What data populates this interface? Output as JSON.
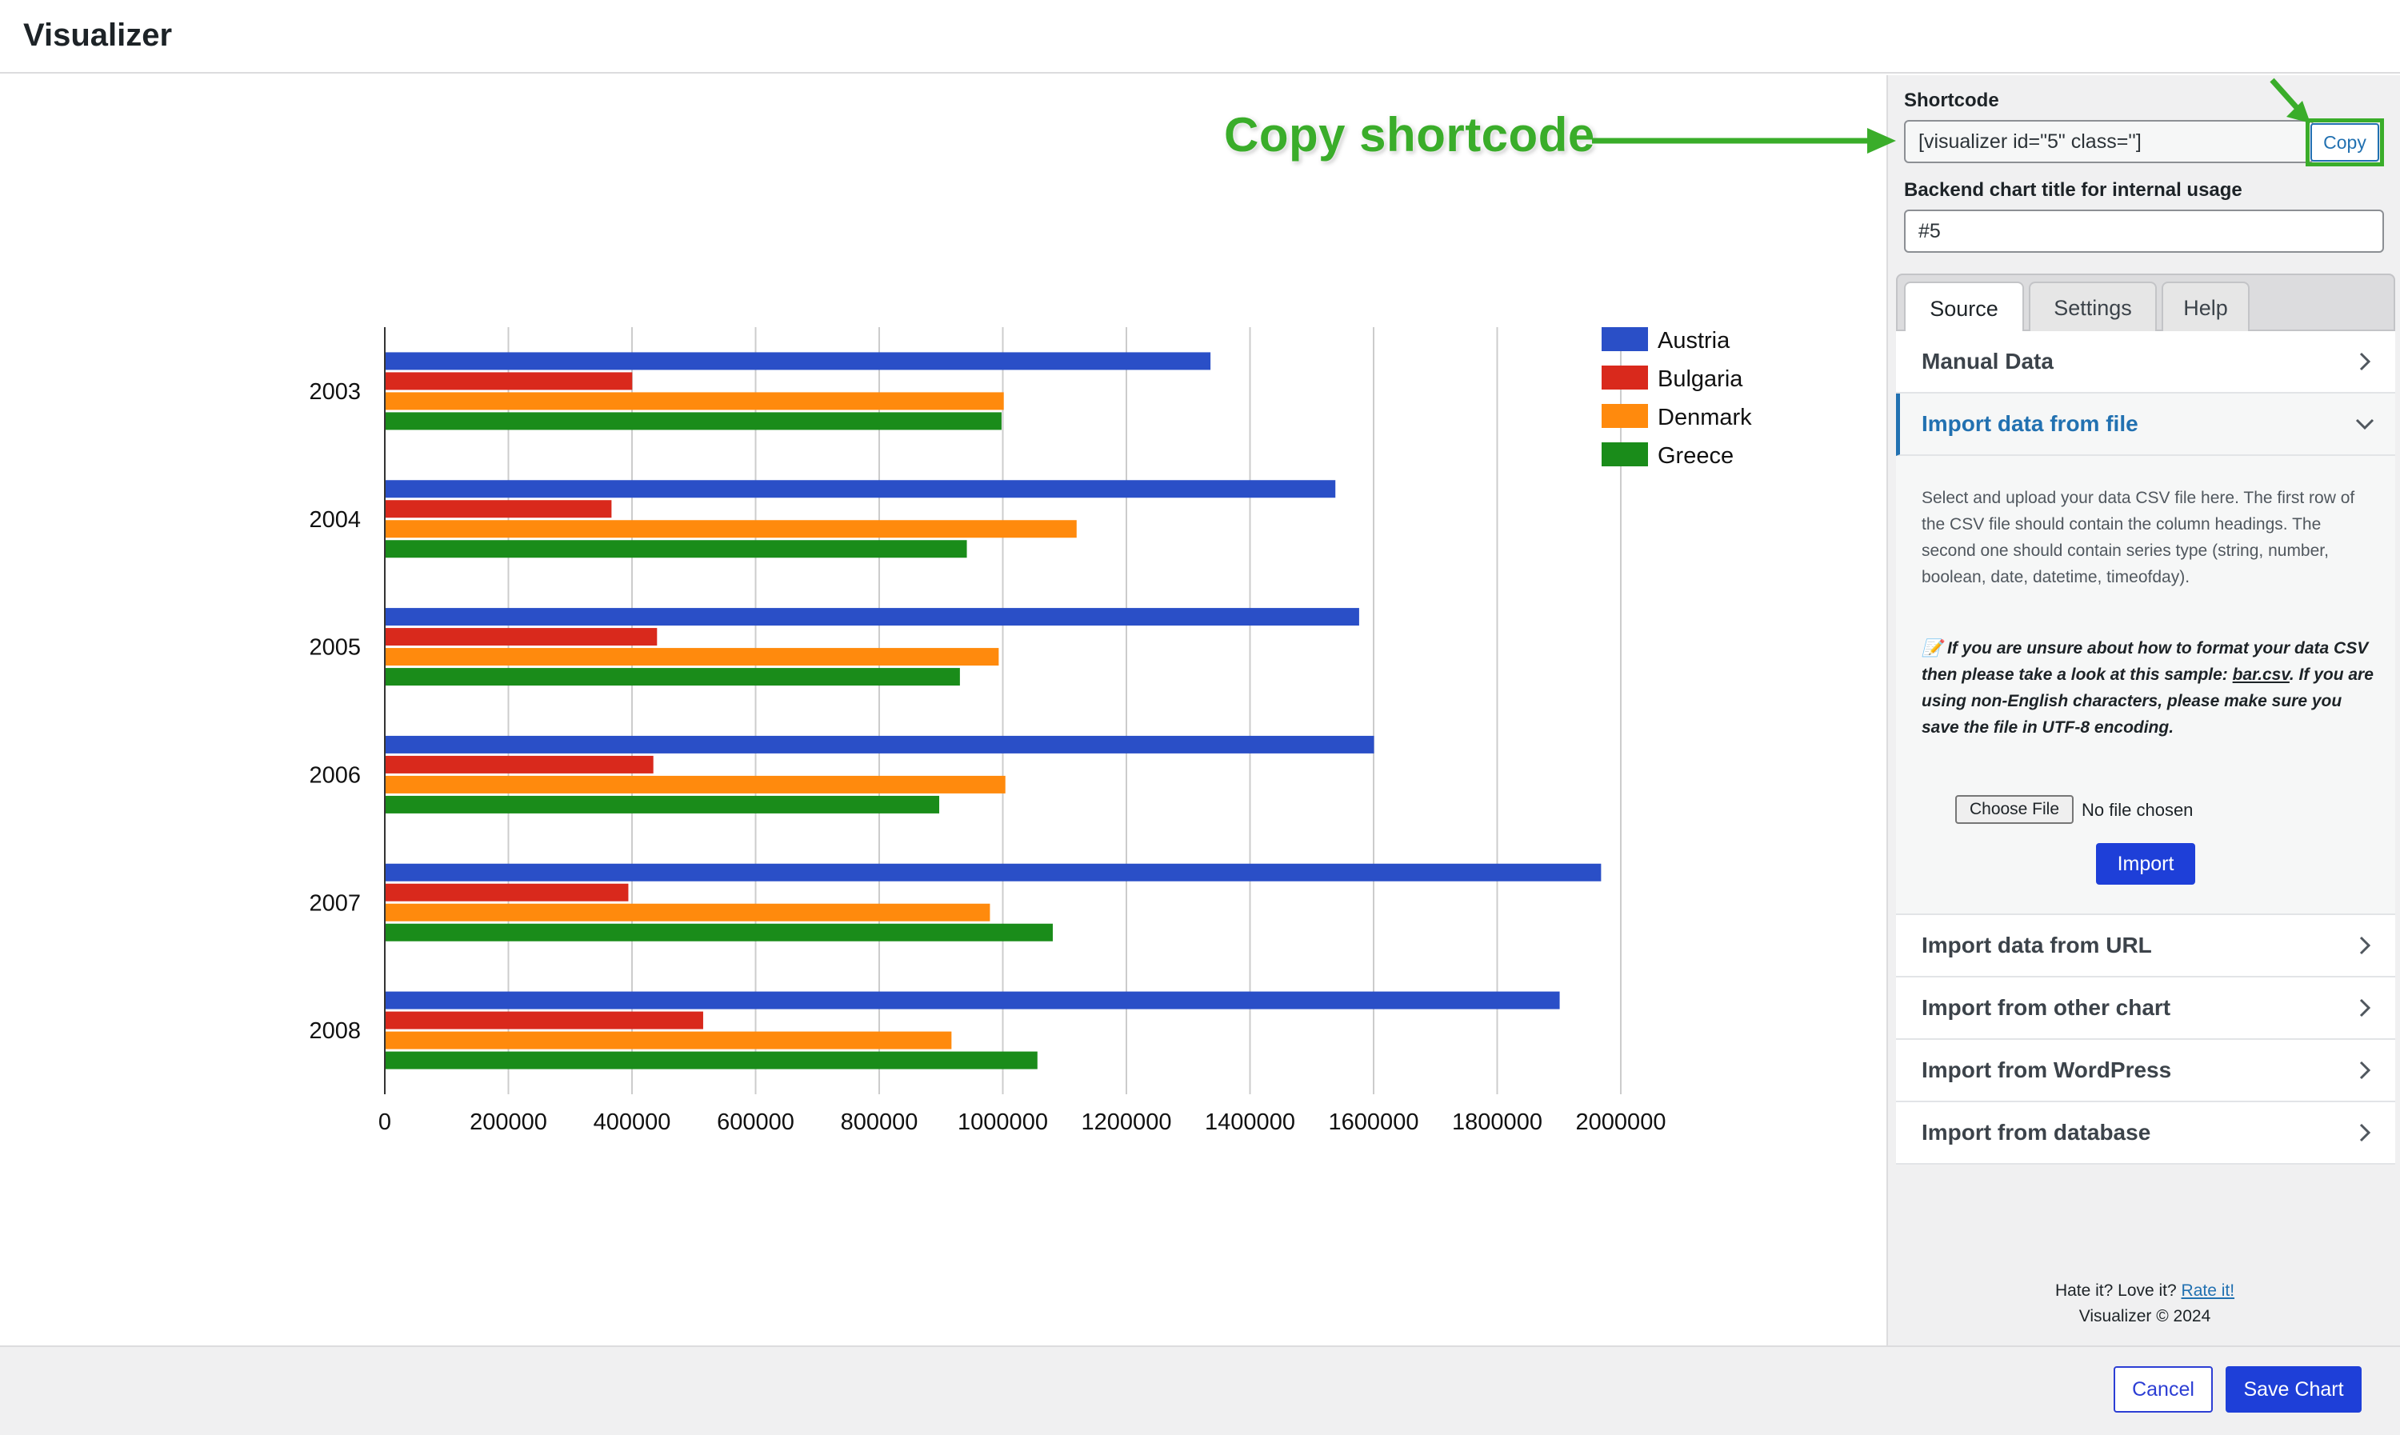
{
  "header": {
    "title": "Visualizer"
  },
  "callout": {
    "text": "Copy shortcode"
  },
  "sidebar": {
    "shortcode_label": "Shortcode",
    "shortcode_value": "[visualizer id=\"5\" class='']",
    "copy_label": "Copy",
    "title_label": "Backend chart title for internal usage",
    "title_value": "#5",
    "tabs": [
      {
        "label": "Source"
      },
      {
        "label": "Settings"
      },
      {
        "label": "Help"
      }
    ],
    "accordion": {
      "manual_data": "Manual Data",
      "import_file": "Import data from file",
      "import_desc": "Select and upload your data CSV file here. The first row of the CSV file should contain the column headings. The second one should contain series type (string, number, boolean, date, datetime, timeofday).",
      "note_icon": "📝",
      "note_part1": "If you are unsure about how to format your data CSV then please take a look at this sample: ",
      "note_link": "bar.csv",
      "note_part2": ". If you are using non-English characters, please make sure you save the file in UTF-8 encoding.",
      "choose_file": "Choose File",
      "no_file": "No file chosen",
      "import_button": "Import",
      "import_url": "Import data from URL",
      "import_other_chart": "Import from other chart",
      "import_wordpress": "Import from WordPress",
      "import_database": "Import from database"
    },
    "footer": {
      "prefix": "Hate it? Love it? ",
      "rate_link": "Rate it!",
      "copyright": "Visualizer © 2024"
    }
  },
  "bottom": {
    "cancel_label": "Cancel",
    "save_label": "Save Chart"
  },
  "chart_data": {
    "type": "bar",
    "orientation": "horizontal",
    "categories": [
      "2003",
      "2004",
      "2005",
      "2006",
      "2007",
      "2008"
    ],
    "series": [
      {
        "name": "Austria",
        "color": "#2a4fc7",
        "values": [
          1336060,
          1538156,
          1576579,
          1600652,
          1968113,
          1901067
        ]
      },
      {
        "name": "Bulgaria",
        "color": "#d9291c",
        "values": [
          400361,
          366849,
          440514,
          434552,
          394105,
          515150
        ]
      },
      {
        "name": "Denmark",
        "color": "#ff8a0d",
        "values": [
          1001582,
          1119450,
          993360,
          1004163,
          979198,
          916965
        ]
      },
      {
        "name": "Greece",
        "color": "#1a8c1a",
        "values": [
          997974,
          941795,
          930593,
          897127,
          1080887,
          1056036
        ]
      }
    ],
    "xlim": [
      0,
      2000000
    ],
    "x_ticks": [
      "0",
      "200000",
      "400000",
      "600000",
      "800000",
      "1000000",
      "1200000",
      "1400000",
      "1600000",
      "1800000",
      "2000000"
    ],
    "grid": true,
    "legend": "right"
  }
}
